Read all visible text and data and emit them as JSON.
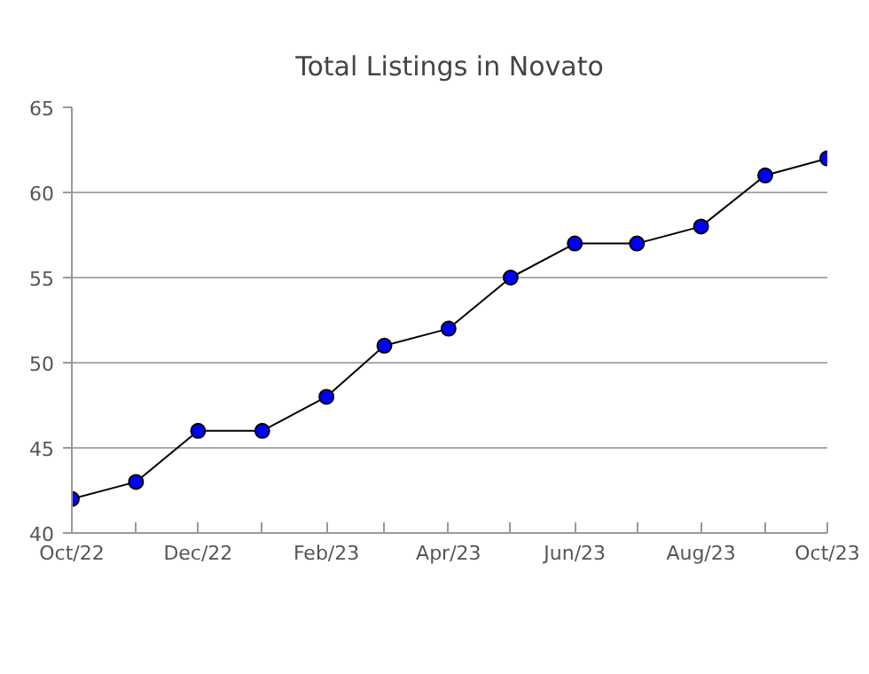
{
  "chart_data": {
    "type": "line",
    "title": "Total Listings in Novato",
    "x": [
      "2022-10",
      "2022-11",
      "2022-12",
      "2023-01",
      "2023-02",
      "2023-03",
      "2023-04",
      "2023-05",
      "2023-06",
      "2023-07",
      "2023-08",
      "2023-09",
      "2023-10"
    ],
    "series": [
      {
        "color": "#0000ff",
        "values": [
          42,
          43,
          46,
          46,
          48,
          51,
          52,
          55,
          57,
          57,
          58,
          61,
          62
        ]
      }
    ],
    "xlim": [
      "2022-10",
      "2023-10"
    ],
    "xticks": [
      {
        "value": "2022-10",
        "label": "Oct/22"
      },
      {
        "value": "2022-11",
        "label": null
      },
      {
        "value": "2022-12",
        "label": "Dec/22"
      },
      {
        "value": "2023-01",
        "label": null
      },
      {
        "value": "2023-02",
        "label": "Feb/23"
      },
      {
        "value": "2023-03",
        "label": null
      },
      {
        "value": "2023-04",
        "label": "Apr/23"
      },
      {
        "value": "2023-05",
        "label": null
      },
      {
        "value": "2023-06",
        "label": "Jun/23"
      },
      {
        "value": "2023-07",
        "label": null
      },
      {
        "value": "2023-08",
        "label": "Aug/23"
      },
      {
        "value": "2023-09",
        "label": null
      },
      {
        "value": "2023-10",
        "label": "Oct/23"
      }
    ],
    "ylim": [
      40,
      65
    ],
    "yticks": [
      40,
      45,
      50,
      55,
      60,
      65
    ],
    "grid": "y",
    "marker": "circle",
    "line_style": "solid"
  }
}
